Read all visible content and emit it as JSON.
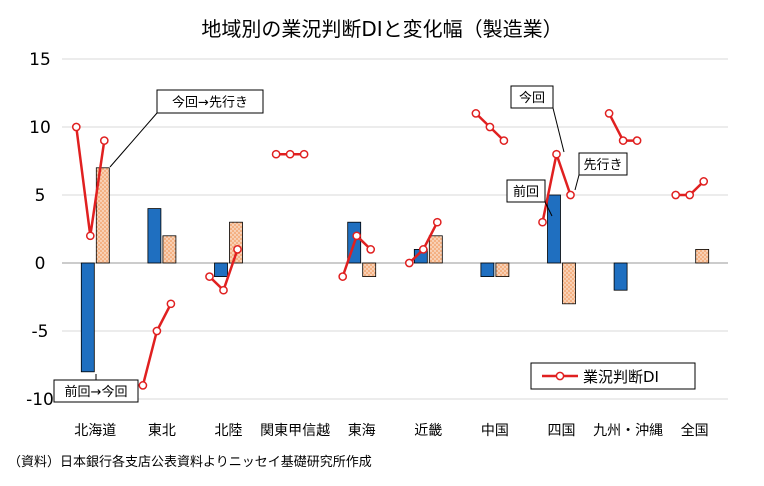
{
  "chart_data": {
    "type": "bar",
    "title": "地域別の業況判断DIと変化幅（製造業）",
    "categories": [
      "北海道",
      "東北",
      "北陸",
      "関東甲信越",
      "東海",
      "近畿",
      "中国",
      "四国",
      "九州・沖縄",
      "全国"
    ],
    "ylim": [
      -10,
      15
    ],
    "yticks": [
      15,
      10,
      5,
      0,
      -5,
      -10
    ],
    "grid": true,
    "series": [
      {
        "type": "bar",
        "values": [
          -8,
          4,
          -1,
          0,
          3,
          1,
          -1,
          5,
          -2,
          0
        ],
        "color": "#1f6fc0"
      },
      {
        "type": "bar",
        "values": [
          7,
          2,
          3,
          0,
          -1,
          2,
          -1,
          -3,
          0,
          1
        ],
        "color": "#f4b183"
      },
      {
        "type": "line",
        "name": "業況判断DI",
        "color": "#e02020",
        "points": [
          [
            10,
            2,
            9
          ],
          [
            -9,
            -5,
            -3
          ],
          [
            -1,
            -2,
            1
          ],
          [
            8,
            8,
            8
          ],
          [
            -1,
            2,
            1
          ],
          [
            0,
            1,
            3
          ],
          [
            11,
            10,
            9
          ],
          [
            3,
            8,
            5
          ],
          [
            11,
            9,
            9
          ],
          [
            5,
            5,
            6
          ]
        ]
      }
    ],
    "legend": {
      "label": "業況判断DI",
      "position": "bottom-right"
    },
    "annotations": {
      "prev_to_now": "前回→今回",
      "now_to_next": "今回→先行き",
      "now": "今回",
      "prev": "前回",
      "next": "先行き"
    }
  },
  "source_note": "（資料）日本銀行各支店公表資料よりニッセイ基礎研究所作成"
}
